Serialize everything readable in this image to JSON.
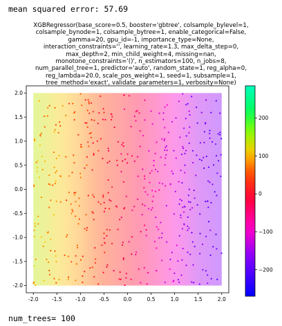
{
  "output": {
    "mse_prefix": "mean squared error: ",
    "mse_value": "57.69",
    "num_trees_prefix": "num_trees= ",
    "num_trees_value": "100"
  },
  "chart_data": {
    "type": "scatter",
    "title_lines": [
      "XGBRegressor(base_score=0.5, booster='gbtree', colsample_bylevel=1,",
      "colsample_bynode=1, colsample_bytree=1, enable_categorical=False,",
      "gamma=20, gpu_id=-1, importance_type=None,",
      "interaction_constraints='', learning_rate=1.3, max_delta_step=0,",
      "max_depth=2, min_child_weight=4, missing=nan,",
      "monotone_constraints='()', n_estimators=100, n_jobs=8,",
      "num_parallel_tree=1, predictor='auto', random_state=1, reg_alpha=0,",
      "reg_lambda=20.0, scale_pos_weight=1, seed=1, subsample=1,",
      "tree_method='exact', validate_parameters=1, verbosity=None)"
    ],
    "xlim": [
      -2.15,
      2.15
    ],
    "ylim": [
      -2.15,
      2.15
    ],
    "xticks": [
      "-2.0",
      "-1.5",
      "-1.0",
      "-0.5",
      "0.0",
      "0.5",
      "1.0",
      "1.5",
      "2.0"
    ],
    "yticks": [
      "2.0",
      "1.5",
      "1.0",
      "0.5",
      "0.0",
      "-0.5",
      "-1.0",
      "-1.5",
      "-2.0"
    ],
    "xtick_values": [
      -2.0,
      -1.5,
      -1.0,
      -0.5,
      0.0,
      0.5,
      1.0,
      1.5,
      2.0
    ],
    "ytick_values": [
      2.0,
      1.5,
      1.0,
      0.5,
      0.0,
      -0.5,
      -1.0,
      -1.5,
      -2.0
    ],
    "background": {
      "description": "model prediction surface over [-2,2]x[-2,2], varies mainly with x",
      "x": [
        -2.0,
        -1.5,
        -1.0,
        -0.5,
        0.0,
        0.5,
        1.0,
        1.5,
        2.0
      ],
      "prediction": [
        140,
        115,
        85,
        45,
        5,
        -45,
        -95,
        -140,
        -165
      ]
    },
    "points": {
      "count": 500,
      "x_range": [
        -2.0,
        2.0
      ],
      "y_range": [
        -2.0,
        2.0
      ],
      "color_by": "target value, roughly decreasing with x"
    },
    "colorbar": {
      "colormap": "gist_rainbow",
      "range": [
        -270,
        285
      ],
      "ticks": [
        "200",
        "100",
        "0",
        "−100",
        "−200"
      ],
      "tick_values": [
        200,
        100,
        0,
        -100,
        -200
      ]
    },
    "grid": false
  }
}
